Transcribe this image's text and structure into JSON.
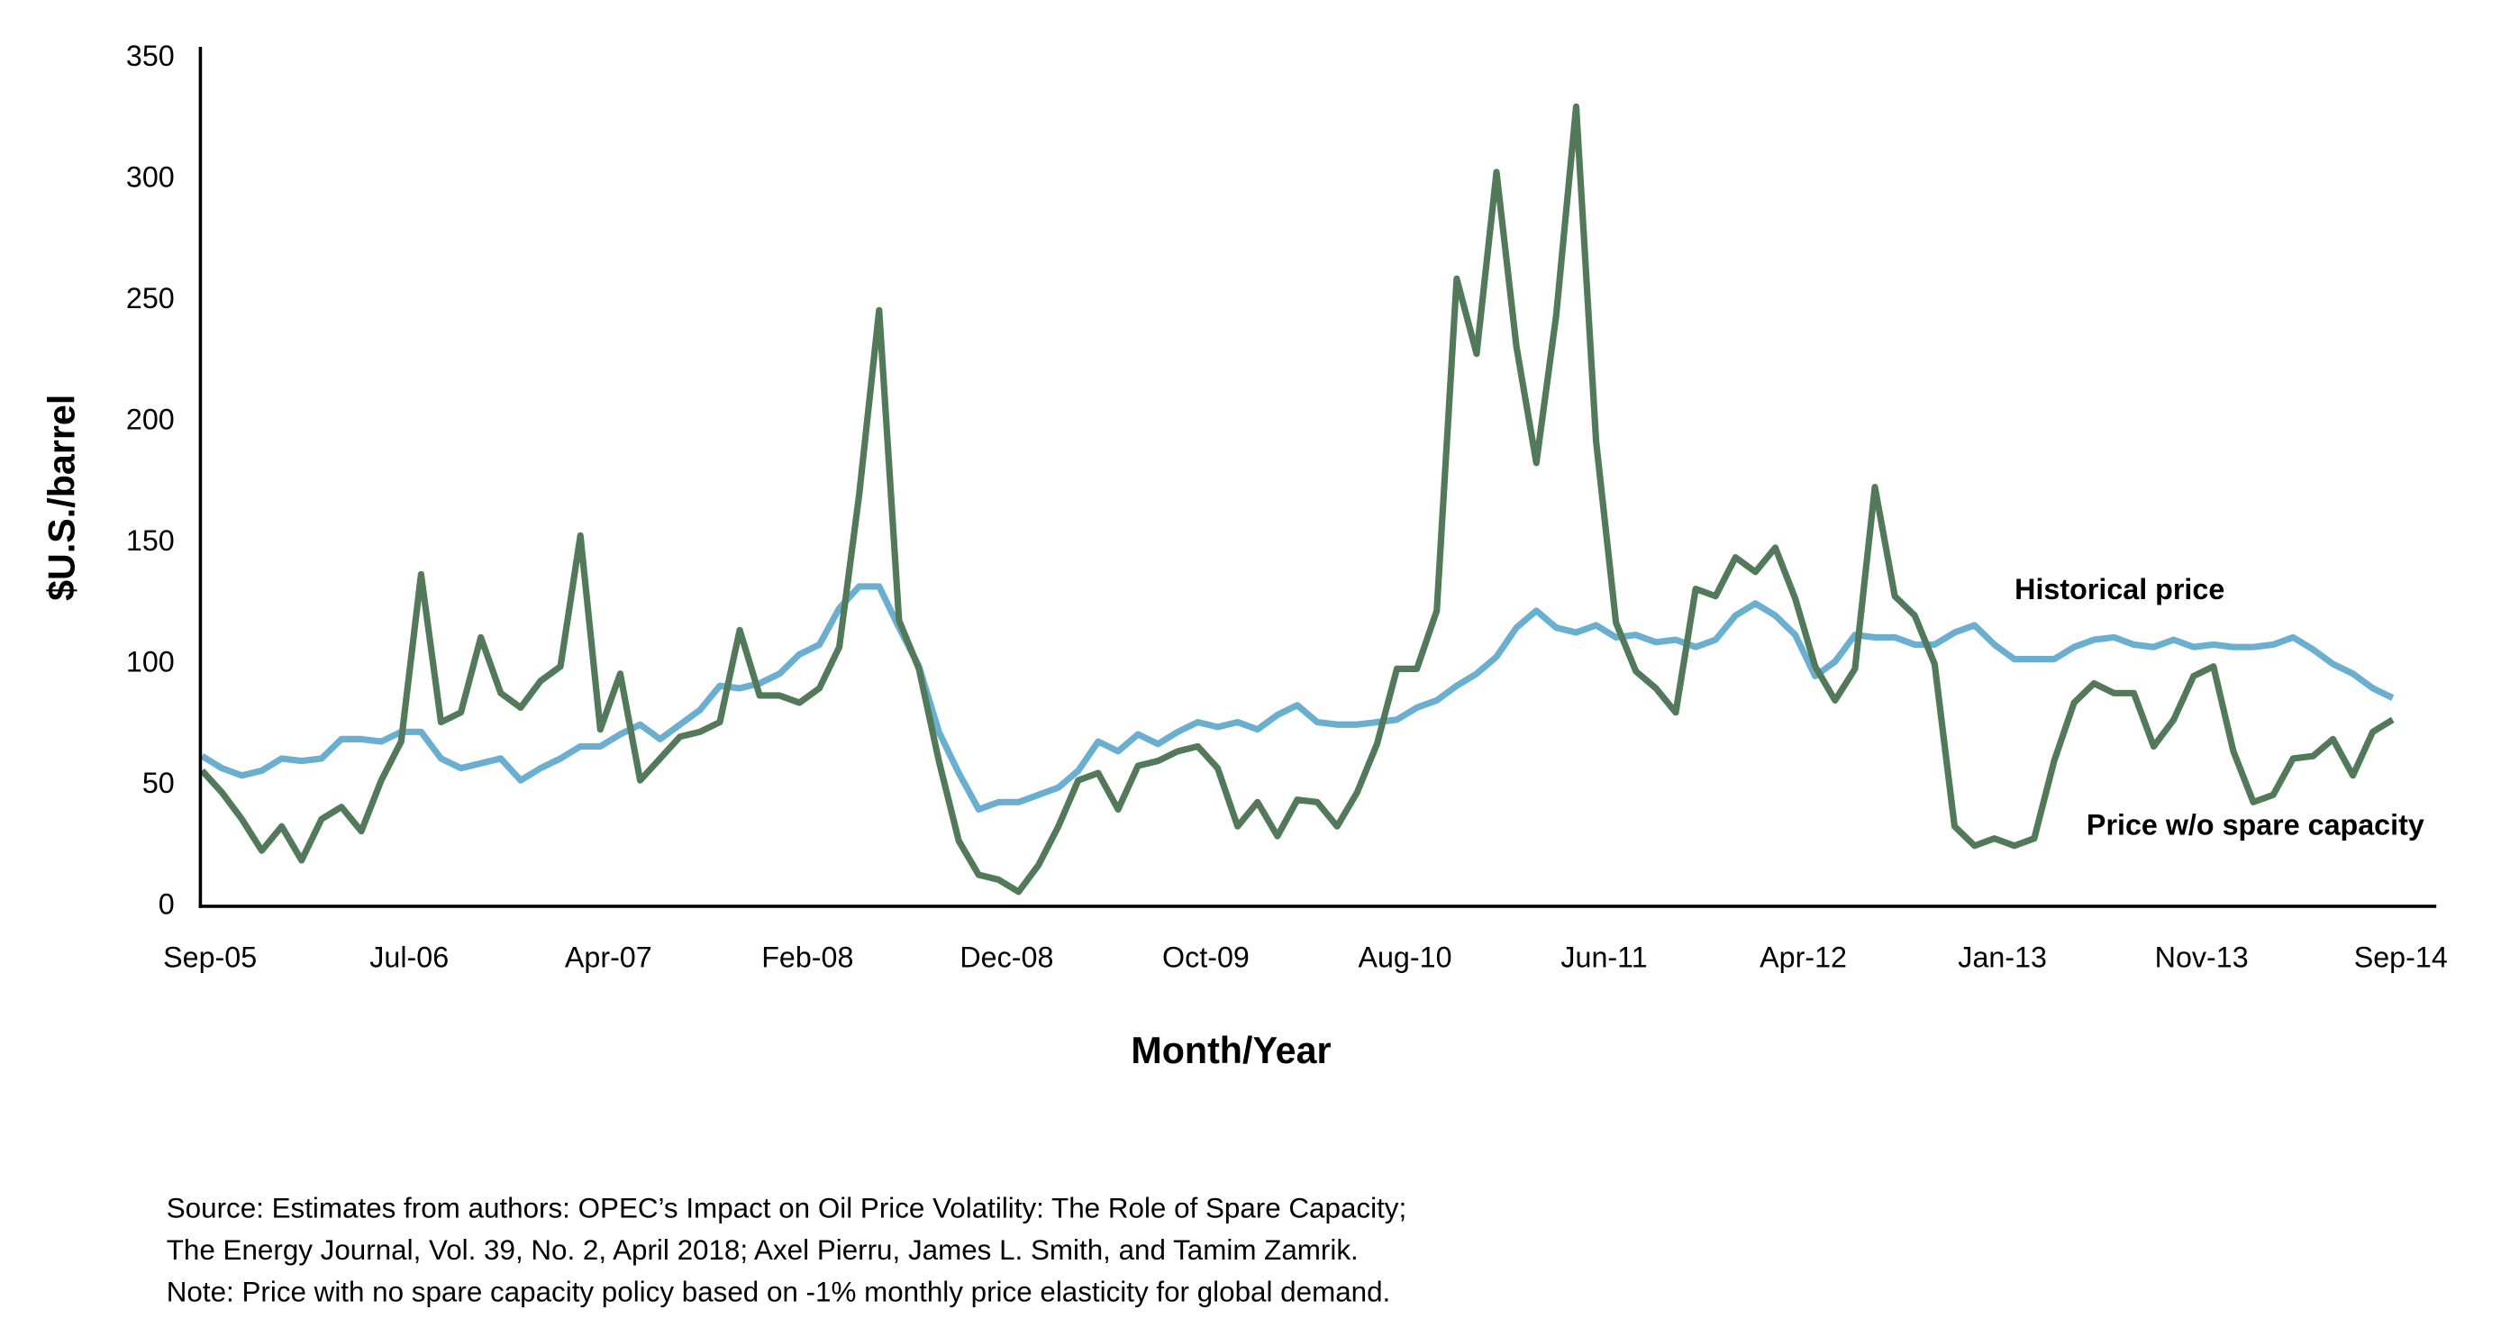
{
  "chart_data": {
    "type": "line",
    "x_label": "Month/Year",
    "y_label": "$U.S./barrel",
    "categories": [
      "Sep-05",
      null,
      null,
      null,
      null,
      null,
      null,
      null,
      null,
      null,
      "Jul-06",
      null,
      null,
      null,
      null,
      null,
      null,
      null,
      null,
      null,
      "Apr-07",
      null,
      null,
      null,
      null,
      null,
      null,
      null,
      null,
      null,
      "Feb-08",
      null,
      null,
      null,
      null,
      null,
      null,
      null,
      null,
      null,
      "Dec-08",
      null,
      null,
      null,
      null,
      null,
      null,
      null,
      null,
      null,
      "Oct-09",
      null,
      null,
      null,
      null,
      null,
      null,
      null,
      null,
      null,
      "Aug-10",
      null,
      null,
      null,
      null,
      null,
      null,
      null,
      null,
      null,
      "Jun-11",
      null,
      null,
      null,
      null,
      null,
      null,
      null,
      null,
      null,
      "Apr-12",
      null,
      null,
      null,
      null,
      null,
      null,
      null,
      null,
      null,
      "Jan-13",
      null,
      null,
      null,
      null,
      null,
      null,
      null,
      null,
      null,
      "Nov-13",
      null,
      null,
      null,
      null,
      null,
      null,
      null,
      null,
      null,
      "Sep-14"
    ],
    "series": [
      {
        "name": "Historical price",
        "color": "#6aafd0",
        "values": [
          62,
          57,
          54,
          56,
          61,
          60,
          61,
          69,
          69,
          68,
          72,
          72,
          61,
          57,
          59,
          61,
          52,
          57,
          61,
          66,
          66,
          71,
          75,
          69,
          75,
          81,
          91,
          90,
          92,
          96,
          104,
          108,
          123,
          132,
          132,
          115,
          99,
          72,
          55,
          40,
          43,
          43,
          46,
          49,
          56,
          68,
          64,
          71,
          67,
          72,
          76,
          74,
          76,
          73,
          79,
          83,
          76,
          75,
          75,
          76,
          77,
          82,
          85,
          91,
          96,
          103,
          115,
          122,
          115,
          113,
          116,
          111,
          112,
          109,
          110,
          107,
          110,
          120,
          125,
          120,
          112,
          95,
          101,
          112,
          111,
          111,
          108,
          108,
          113,
          116,
          108,
          102,
          102,
          102,
          107,
          110,
          111,
          108,
          107,
          110,
          107,
          108,
          107,
          107,
          108,
          111,
          106,
          100,
          96,
          90,
          86
        ]
      },
      {
        "name": "Price w/o spare capacity",
        "color": "#527a5a",
        "values": [
          56,
          47,
          36,
          23,
          33,
          19,
          36,
          41,
          31,
          52,
          68,
          137,
          76,
          80,
          111,
          88,
          82,
          93,
          99,
          153,
          73,
          96,
          52,
          61,
          70,
          72,
          76,
          114,
          87,
          87,
          84,
          90,
          107,
          170,
          246,
          118,
          98,
          60,
          27,
          13,
          11,
          6,
          17,
          33,
          52,
          55,
          40,
          58,
          60,
          64,
          66,
          57,
          33,
          43,
          29,
          44,
          43,
          33,
          47,
          67,
          98,
          98,
          122,
          259,
          228,
          303,
          231,
          183,
          244,
          330,
          192,
          117,
          97,
          90,
          80,
          131,
          128,
          144,
          138,
          148,
          127,
          99,
          85,
          98,
          173,
          128,
          120,
          100,
          33,
          25,
          28,
          25,
          28,
          60,
          84,
          92,
          88,
          88,
          66,
          77,
          95,
          99,
          64,
          43,
          46,
          61,
          62,
          69,
          54,
          72,
          77
        ]
      }
    ],
    "ylim": [
      0,
      350
    ],
    "yticks": [
      0,
      50,
      100,
      150,
      200,
      250,
      300,
      350
    ],
    "notes": [
      "Source: Estimates from authors: OPEC’s Impact on Oil Price Volatility: The Role of Spare Capacity;",
      "The Energy Journal, Vol. 39, No. 2, April 2018; Axel Pierru, James L. Smith, and Tamim Zamrik.",
      "Note: Price with no spare capacity policy based on -1% monthly price elasticity for global demand."
    ]
  }
}
